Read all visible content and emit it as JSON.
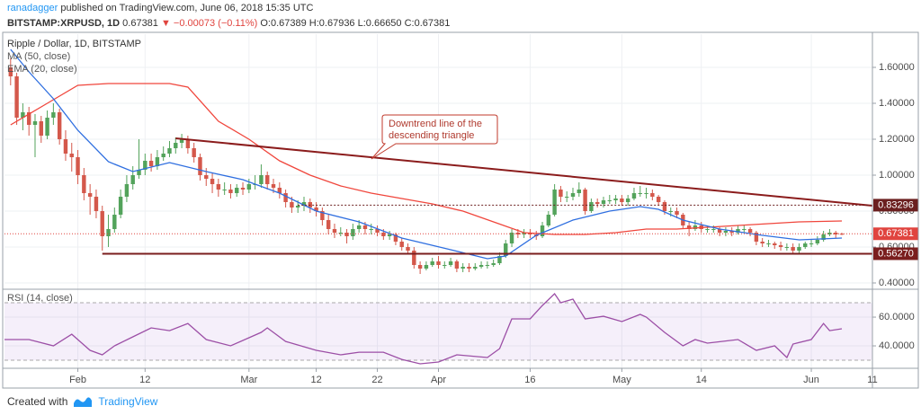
{
  "header": {
    "author": "ranadagger",
    "published": "published on TradingView.com, June 06, 2018 15:35 UTC",
    "symbol": "BITSTAMP:XRPUSD, 1D",
    "last": "0.67381",
    "change": "▼ −0.00073 (−0.11%)",
    "ohlc": "O:0.67389 H:0.67936 L:0.66650 C:0.67381"
  },
  "footer": {
    "created": "Created with",
    "brand": "TradingView"
  },
  "chart_data": [
    {
      "type": "candlestick",
      "title": "Ripple / Dollar, 1D, BITSTAMP",
      "xlim": [
        -12,
        130
      ],
      "ylim": [
        0.365,
        1.785
      ],
      "yticks": [
        {
          "value": 0.4,
          "label": "0.40000"
        },
        {
          "value": 0.6,
          "label": "0.60000"
        },
        {
          "value": 0.8,
          "label": "0.80000"
        },
        {
          "value": 1.0,
          "label": "1.00000"
        },
        {
          "value": 1.2,
          "label": "1.20000"
        },
        {
          "value": 1.4,
          "label": "1.40000"
        },
        {
          "value": 1.6,
          "label": "1.60000"
        }
      ],
      "grid": true,
      "up_color": "#53a35b",
      "down_color": "#d4584b",
      "x": [
        -11,
        -10,
        -9,
        -8,
        -7,
        -6,
        -5,
        -4,
        -3,
        -2,
        -1,
        0,
        1,
        2,
        3,
        4,
        5,
        6,
        7,
        8,
        9,
        10,
        11,
        12,
        13,
        14,
        15,
        16,
        17,
        18,
        19,
        20,
        21,
        22,
        23,
        24,
        25,
        26,
        27,
        28,
        29,
        30,
        31,
        32,
        33,
        34,
        35,
        36,
        37,
        38,
        39,
        40,
        41,
        42,
        43,
        44,
        45,
        46,
        47,
        48,
        49,
        50,
        51,
        52,
        53,
        54,
        55,
        56,
        57,
        58,
        59,
        60,
        61,
        62,
        63,
        64,
        65,
        66,
        67,
        68,
        69,
        70,
        71,
        72,
        73,
        74,
        75,
        76,
        77,
        78,
        79,
        80,
        81,
        82,
        83,
        84,
        85,
        86,
        87,
        88,
        89,
        90,
        91,
        92,
        93,
        94,
        95,
        96,
        97,
        98,
        99,
        100,
        101,
        102,
        103,
        104,
        105,
        106,
        107,
        108,
        109,
        110,
        111,
        112,
        113,
        114,
        115,
        116,
        117,
        118,
        119,
        120,
        121,
        122,
        123,
        124,
        125
      ],
      "open": [
        1.6,
        1.55,
        1.32,
        1.35,
        1.28,
        1.3,
        1.22,
        1.32,
        1.35,
        1.2,
        1.12,
        1.1,
        1.0,
        0.9,
        0.88,
        0.8,
        0.66,
        0.7,
        0.78,
        0.88,
        0.95,
        1.0,
        1.03,
        1.08,
        1.05,
        1.1,
        1.12,
        1.15,
        1.18,
        1.2,
        1.15,
        1.1,
        1.0,
        0.98,
        0.95,
        0.92,
        0.92,
        0.9,
        0.93,
        0.92,
        0.95,
        0.95,
        1.0,
        0.95,
        0.93,
        0.9,
        0.85,
        0.82,
        0.83,
        0.85,
        0.82,
        0.8,
        0.75,
        0.7,
        0.68,
        0.68,
        0.66,
        0.7,
        0.72,
        0.7,
        0.7,
        0.68,
        0.66,
        0.67,
        0.63,
        0.6,
        0.58,
        0.5,
        0.48,
        0.5,
        0.52,
        0.5,
        0.5,
        0.52,
        0.48,
        0.49,
        0.48,
        0.49,
        0.5,
        0.5,
        0.51,
        0.55,
        0.62,
        0.68,
        0.67,
        0.68,
        0.67,
        0.66,
        0.72,
        0.78,
        0.92,
        0.88,
        0.88,
        0.9,
        0.92,
        0.8,
        0.85,
        0.84,
        0.86,
        0.86,
        0.87,
        0.85,
        0.87,
        0.9,
        0.9,
        0.9,
        0.88,
        0.85,
        0.8,
        0.8,
        0.78,
        0.72,
        0.7,
        0.72,
        0.7,
        0.7,
        0.7,
        0.68,
        0.69,
        0.68,
        0.7,
        0.7,
        0.68,
        0.63,
        0.62,
        0.62,
        0.61,
        0.6,
        0.6,
        0.58,
        0.6,
        0.62,
        0.62,
        0.64,
        0.67,
        0.68,
        0.67389
      ],
      "high": [
        1.65,
        1.57,
        1.4,
        1.38,
        1.34,
        1.33,
        1.36,
        1.4,
        1.37,
        1.25,
        1.18,
        1.14,
        1.04,
        0.95,
        0.92,
        0.83,
        0.78,
        0.82,
        0.92,
        1.0,
        1.05,
        1.2,
        1.12,
        1.12,
        1.14,
        1.16,
        1.19,
        1.21,
        1.23,
        1.22,
        1.18,
        1.12,
        1.04,
        1.01,
        0.98,
        0.96,
        0.95,
        0.95,
        0.96,
        0.98,
        1.0,
        1.06,
        1.02,
        0.98,
        0.96,
        0.92,
        0.88,
        0.86,
        0.88,
        0.87,
        0.85,
        0.82,
        0.78,
        0.73,
        0.71,
        0.7,
        0.73,
        0.75,
        0.74,
        0.73,
        0.72,
        0.7,
        0.69,
        0.68,
        0.65,
        0.62,
        0.6,
        0.52,
        0.52,
        0.54,
        0.55,
        0.52,
        0.54,
        0.53,
        0.51,
        0.51,
        0.51,
        0.52,
        0.52,
        0.53,
        0.57,
        0.64,
        0.7,
        0.7,
        0.7,
        0.7,
        0.69,
        0.74,
        0.8,
        0.95,
        0.94,
        0.91,
        0.93,
        0.96,
        0.93,
        0.87,
        0.87,
        0.88,
        0.89,
        0.89,
        0.89,
        0.89,
        0.93,
        0.94,
        0.93,
        0.92,
        0.89,
        0.86,
        0.82,
        0.82,
        0.79,
        0.74,
        0.75,
        0.74,
        0.72,
        0.72,
        0.71,
        0.71,
        0.71,
        0.72,
        0.72,
        0.71,
        0.69,
        0.65,
        0.64,
        0.63,
        0.63,
        0.62,
        0.62,
        0.62,
        0.63,
        0.64,
        0.66,
        0.69,
        0.7,
        0.69,
        0.67936
      ],
      "low": [
        1.5,
        1.28,
        1.25,
        1.22,
        1.1,
        1.18,
        1.2,
        1.28,
        1.17,
        1.08,
        1.02,
        0.95,
        0.86,
        0.78,
        0.76,
        0.58,
        0.6,
        0.68,
        0.76,
        0.85,
        0.92,
        0.98,
        1.0,
        1.02,
        1.03,
        1.08,
        1.1,
        1.12,
        1.15,
        1.12,
        1.07,
        0.97,
        0.94,
        0.9,
        0.88,
        0.89,
        0.87,
        0.88,
        0.89,
        0.9,
        0.92,
        0.93,
        0.92,
        0.9,
        0.87,
        0.82,
        0.79,
        0.79,
        0.8,
        0.79,
        0.77,
        0.72,
        0.67,
        0.65,
        0.66,
        0.62,
        0.64,
        0.68,
        0.67,
        0.67,
        0.66,
        0.64,
        0.64,
        0.61,
        0.58,
        0.56,
        0.48,
        0.45,
        0.47,
        0.49,
        0.48,
        0.48,
        0.49,
        0.46,
        0.46,
        0.46,
        0.47,
        0.48,
        0.48,
        0.49,
        0.5,
        0.54,
        0.6,
        0.65,
        0.65,
        0.65,
        0.64,
        0.65,
        0.71,
        0.77,
        0.85,
        0.85,
        0.86,
        0.88,
        0.78,
        0.79,
        0.82,
        0.82,
        0.84,
        0.84,
        0.83,
        0.83,
        0.86,
        0.88,
        0.87,
        0.86,
        0.83,
        0.78,
        0.77,
        0.76,
        0.7,
        0.66,
        0.69,
        0.68,
        0.68,
        0.68,
        0.66,
        0.66,
        0.66,
        0.67,
        0.68,
        0.66,
        0.61,
        0.6,
        0.6,
        0.59,
        0.58,
        0.58,
        0.56,
        0.56,
        0.59,
        0.6,
        0.61,
        0.63,
        0.66,
        0.65,
        0.6665
      ],
      "close": [
        1.55,
        1.32,
        1.35,
        1.28,
        1.3,
        1.22,
        1.32,
        1.35,
        1.2,
        1.12,
        1.1,
        1.0,
        0.9,
        0.88,
        0.8,
        0.66,
        0.7,
        0.78,
        0.88,
        0.95,
        1.0,
        1.03,
        1.08,
        1.05,
        1.1,
        1.12,
        1.15,
        1.18,
        1.2,
        1.15,
        1.1,
        1.0,
        0.98,
        0.95,
        0.92,
        0.92,
        0.9,
        0.93,
        0.92,
        0.95,
        0.95,
        1.0,
        0.95,
        0.93,
        0.9,
        0.85,
        0.82,
        0.83,
        0.85,
        0.82,
        0.8,
        0.75,
        0.7,
        0.68,
        0.68,
        0.66,
        0.7,
        0.72,
        0.7,
        0.7,
        0.68,
        0.66,
        0.67,
        0.63,
        0.6,
        0.58,
        0.5,
        0.48,
        0.5,
        0.52,
        0.5,
        0.5,
        0.52,
        0.48,
        0.49,
        0.48,
        0.49,
        0.5,
        0.5,
        0.51,
        0.55,
        0.62,
        0.68,
        0.67,
        0.68,
        0.67,
        0.66,
        0.72,
        0.78,
        0.92,
        0.88,
        0.88,
        0.9,
        0.92,
        0.8,
        0.85,
        0.84,
        0.86,
        0.86,
        0.87,
        0.85,
        0.87,
        0.9,
        0.9,
        0.9,
        0.88,
        0.85,
        0.8,
        0.8,
        0.78,
        0.72,
        0.7,
        0.72,
        0.7,
        0.7,
        0.7,
        0.68,
        0.69,
        0.68,
        0.7,
        0.7,
        0.68,
        0.63,
        0.62,
        0.62,
        0.61,
        0.6,
        0.6,
        0.58,
        0.6,
        0.62,
        0.62,
        0.64,
        0.67,
        0.68,
        0.67,
        0.67381
      ],
      "series": [
        {
          "name": "MA (50, close)",
          "color": "#f0463c",
          "x": [
            -11,
            -5,
            0,
            5,
            10,
            15,
            18,
            23,
            28,
            33,
            38,
            43,
            48,
            53,
            58,
            63,
            68,
            73,
            78,
            83,
            88,
            93,
            98,
            103,
            108,
            113,
            118,
            125
          ],
          "values": [
            1.28,
            1.4,
            1.5,
            1.51,
            1.51,
            1.51,
            1.49,
            1.3,
            1.2,
            1.08,
            1.0,
            0.94,
            0.9,
            0.87,
            0.84,
            0.8,
            0.74,
            0.68,
            0.67,
            0.67,
            0.68,
            0.7,
            0.7,
            0.71,
            0.72,
            0.73,
            0.74,
            0.745
          ]
        },
        {
          "name": "EMA (20, close)",
          "color": "#2f6fe0",
          "x": [
            -11,
            -8,
            -4,
            0,
            5,
            9,
            15,
            21,
            27,
            33,
            39,
            46,
            53,
            61,
            67,
            70,
            75,
            81,
            87,
            92,
            95,
            99,
            105,
            112,
            118,
            125
          ],
          "values": [
            1.7,
            1.575,
            1.425,
            1.25,
            1.075,
            1.02,
            1.07,
            1.02,
            0.975,
            0.9,
            0.8,
            0.74,
            0.65,
            0.585,
            0.535,
            0.55,
            0.665,
            0.75,
            0.8,
            0.825,
            0.81,
            0.75,
            0.7,
            0.665,
            0.64,
            0.65
          ]
        }
      ],
      "hlines": [
        {
          "value": 0.83296,
          "label": "0.83296",
          "from": 36,
          "color": "#6b1f1f",
          "dotted": true
        },
        {
          "value": 0.5627,
          "label": "0.56270",
          "from": 4,
          "color": "#7a1e1e",
          "dotted": false
        }
      ],
      "last_price": {
        "value": 0.67381,
        "label": "0.67381",
        "color": "#e0443f"
      },
      "trendline": {
        "x": [
          16,
          130
        ],
        "values": [
          1.205,
          0.83
        ],
        "color": "#8b1c1c"
      },
      "annotation": [
        "Downtrend line of the",
        "descending triangle"
      ]
    },
    {
      "type": "line",
      "xlim": [
        -12,
        130
      ],
      "ylim": [
        24.4,
        79.4
      ],
      "yticks": [
        {
          "value": 40,
          "label": "40.0000"
        },
        {
          "value": 60,
          "label": "60.0000"
        }
      ],
      "band": [
        30,
        70
      ],
      "grid": true,
      "xticks": [
        {
          "value": 0,
          "label": "Feb"
        },
        {
          "value": 11,
          "label": "12"
        },
        {
          "value": 28,
          "label": "Mar"
        },
        {
          "value": 39,
          "label": "12"
        },
        {
          "value": 49,
          "label": "22"
        },
        {
          "value": 59,
          "label": "Apr"
        },
        {
          "value": 74,
          "label": "16"
        },
        {
          "value": 89,
          "label": "May"
        },
        {
          "value": 102,
          "label": "14"
        },
        {
          "value": 120,
          "label": "Jun"
        },
        {
          "value": 130,
          "label": "11"
        }
      ],
      "series": [
        {
          "name": "RSI (14, close)",
          "color": "#9c4fa6",
          "x": [
            -12,
            -8,
            -4,
            -1,
            2,
            4,
            6,
            9,
            12,
            15,
            18,
            21,
            25,
            30,
            31,
            34,
            39,
            43,
            46,
            50,
            53,
            56,
            59,
            62,
            67,
            69,
            71,
            74,
            76,
            78,
            79,
            81,
            83,
            86,
            89,
            92,
            93,
            96,
            99,
            101,
            103,
            108,
            111,
            114,
            116,
            117,
            120,
            122,
            123,
            125
          ],
          "values": [
            44.4,
            44.4,
            40,
            48.1,
            36.9,
            33.8,
            40,
            46.3,
            52.5,
            50.6,
            55.6,
            44.4,
            40,
            49.4,
            52.5,
            43.1,
            36.9,
            33.8,
            35.6,
            35.6,
            30.6,
            27.5,
            28.8,
            33.8,
            31.9,
            38.1,
            58.8,
            58.8,
            68.1,
            76.3,
            70,
            72.5,
            58.8,
            60.6,
            56.9,
            61.9,
            60,
            49.4,
            40,
            44.4,
            41.9,
            44.4,
            36.9,
            40,
            31.9,
            41.3,
            44.4,
            55.6,
            50.6,
            51.9
          ]
        }
      ]
    }
  ]
}
